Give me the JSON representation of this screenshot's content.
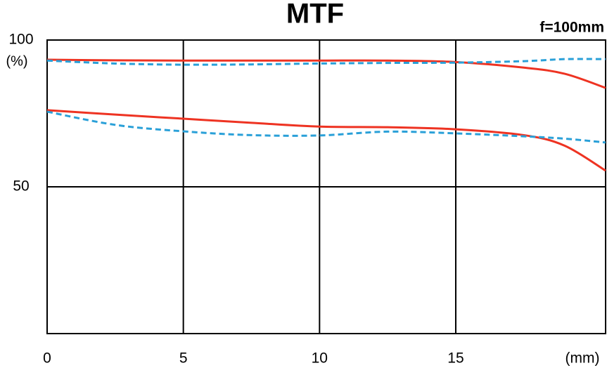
{
  "chart_data": {
    "type": "line",
    "title": "MTF",
    "subtitle": "f=100mm",
    "y_label": "(%)",
    "x_label": "(mm)",
    "x": [
      0,
      2.5,
      5,
      7.5,
      10,
      12.5,
      15,
      17.5,
      19,
      20.5
    ],
    "xlim": [
      0,
      20.5
    ],
    "xticks": [
      0,
      5,
      10,
      15
    ],
    "ylim": [
      0,
      100
    ],
    "yticks": [
      50,
      100
    ],
    "grid": true,
    "series": [
      {
        "color": "#ee3322",
        "dashed": false,
        "values": [
          93.3,
          93.1,
          93,
          93,
          93,
          93,
          92.5,
          90.6,
          88.5,
          83.7
        ]
      },
      {
        "color": "#2aa0d8",
        "dashed": true,
        "values": [
          93,
          92,
          91.6,
          91.7,
          92,
          92.2,
          92.3,
          92.8,
          93.5,
          93.5
        ]
      },
      {
        "color": "#ee3322",
        "dashed": false,
        "values": [
          76.1,
          74.6,
          73.2,
          71.8,
          70.5,
          70.3,
          69.6,
          67.6,
          64,
          55.5
        ]
      },
      {
        "color": "#2aa0d8",
        "dashed": true,
        "values": [
          75.6,
          71.1,
          68.9,
          67.6,
          67.5,
          68.8,
          68.2,
          67.2,
          66.4,
          65.1
        ]
      }
    ]
  }
}
